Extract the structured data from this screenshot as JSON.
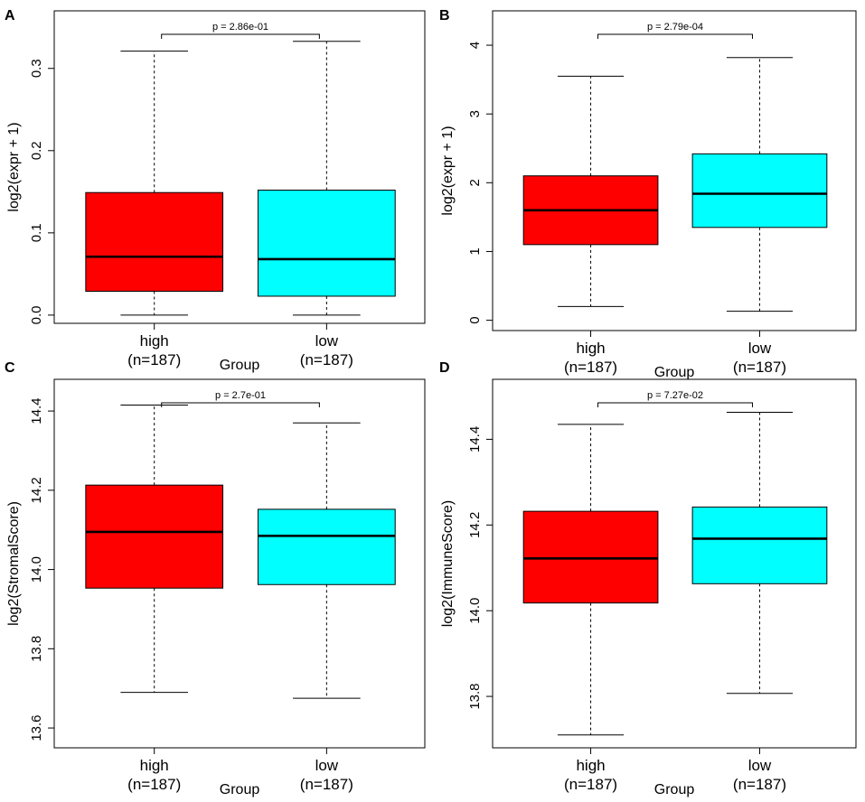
{
  "figure_title": "",
  "chart_data": [
    {
      "panel": "A",
      "type": "boxplot",
      "title": "",
      "xlabel": "Group",
      "ylabel": "log2(expr + 1)",
      "ylim": [
        -0.01,
        0.37
      ],
      "yticks": [
        0.0,
        0.1,
        0.2,
        0.3
      ],
      "ytick_labels": [
        "0.0",
        "0.1",
        "0.2",
        "0.3"
      ],
      "pvalue": "p = 2.86e-01",
      "groups": [
        {
          "name": "high",
          "n_label": "(n=187)",
          "color": "#ff0000",
          "whisker_low": 0.0,
          "q1": 0.029,
          "median": 0.071,
          "q3": 0.149,
          "whisker_high": 0.321
        },
        {
          "name": "low",
          "n_label": "(n=187)",
          "color": "#00ffff",
          "whisker_low": 0.0,
          "q1": 0.023,
          "median": 0.068,
          "q3": 0.152,
          "whisker_high": 0.333
        }
      ]
    },
    {
      "panel": "B",
      "type": "boxplot",
      "title": "",
      "xlabel": "Group",
      "ylabel": "log2(expr + 1)",
      "ylim": [
        -0.15,
        4.5
      ],
      "yticks": [
        0,
        1,
        2,
        3,
        4
      ],
      "ytick_labels": [
        "0",
        "1",
        "2",
        "3",
        "4"
      ],
      "pvalue": "p = 2.79e-04",
      "groups": [
        {
          "name": "high",
          "n_label": "(n=187)",
          "color": "#ff0000",
          "whisker_low": 0.2,
          "q1": 1.1,
          "median": 1.6,
          "q3": 2.1,
          "whisker_high": 3.55
        },
        {
          "name": "low",
          "n_label": "(n=187)",
          "color": "#00ffff",
          "whisker_low": 0.13,
          "q1": 1.35,
          "median": 1.84,
          "q3": 2.42,
          "whisker_high": 3.82
        }
      ]
    },
    {
      "panel": "C",
      "type": "boxplot",
      "title": "",
      "xlabel": "Group",
      "ylabel": "log2(StromalScore)",
      "ylim": [
        13.55,
        14.48
      ],
      "yticks": [
        13.6,
        13.8,
        14.0,
        14.2,
        14.4
      ],
      "ytick_labels": [
        "13.6",
        "13.8",
        "14.0",
        "14.2",
        "14.4"
      ],
      "pvalue": "p = 2.7e-01",
      "groups": [
        {
          "name": "high",
          "n_label": "(n=187)",
          "color": "#ff0000",
          "whisker_low": 13.69,
          "q1": 13.953,
          "median": 14.095,
          "q3": 14.213,
          "whisker_high": 14.415
        },
        {
          "name": "low",
          "n_label": "(n=187)",
          "color": "#00ffff",
          "whisker_low": 13.675,
          "q1": 13.962,
          "median": 14.085,
          "q3": 14.152,
          "whisker_high": 14.37
        }
      ]
    },
    {
      "panel": "D",
      "type": "boxplot",
      "title": "",
      "xlabel": "Group",
      "ylabel": "log2(ImmuneScore)",
      "ylim": [
        13.68,
        14.54
      ],
      "yticks": [
        13.8,
        14.0,
        14.2,
        14.4
      ],
      "ytick_labels": [
        "13.8",
        "14.0",
        "14.2",
        "14.4"
      ],
      "pvalue": "p = 7.27e-02",
      "groups": [
        {
          "name": "high",
          "n_label": "(n=187)",
          "color": "#ff0000",
          "whisker_low": 13.71,
          "q1": 14.018,
          "median": 14.122,
          "q3": 14.232,
          "whisker_high": 14.435
        },
        {
          "name": "low",
          "n_label": "(n=187)",
          "color": "#00ffff",
          "whisker_low": 13.807,
          "q1": 14.063,
          "median": 14.168,
          "q3": 14.242,
          "whisker_high": 14.463
        }
      ]
    }
  ]
}
